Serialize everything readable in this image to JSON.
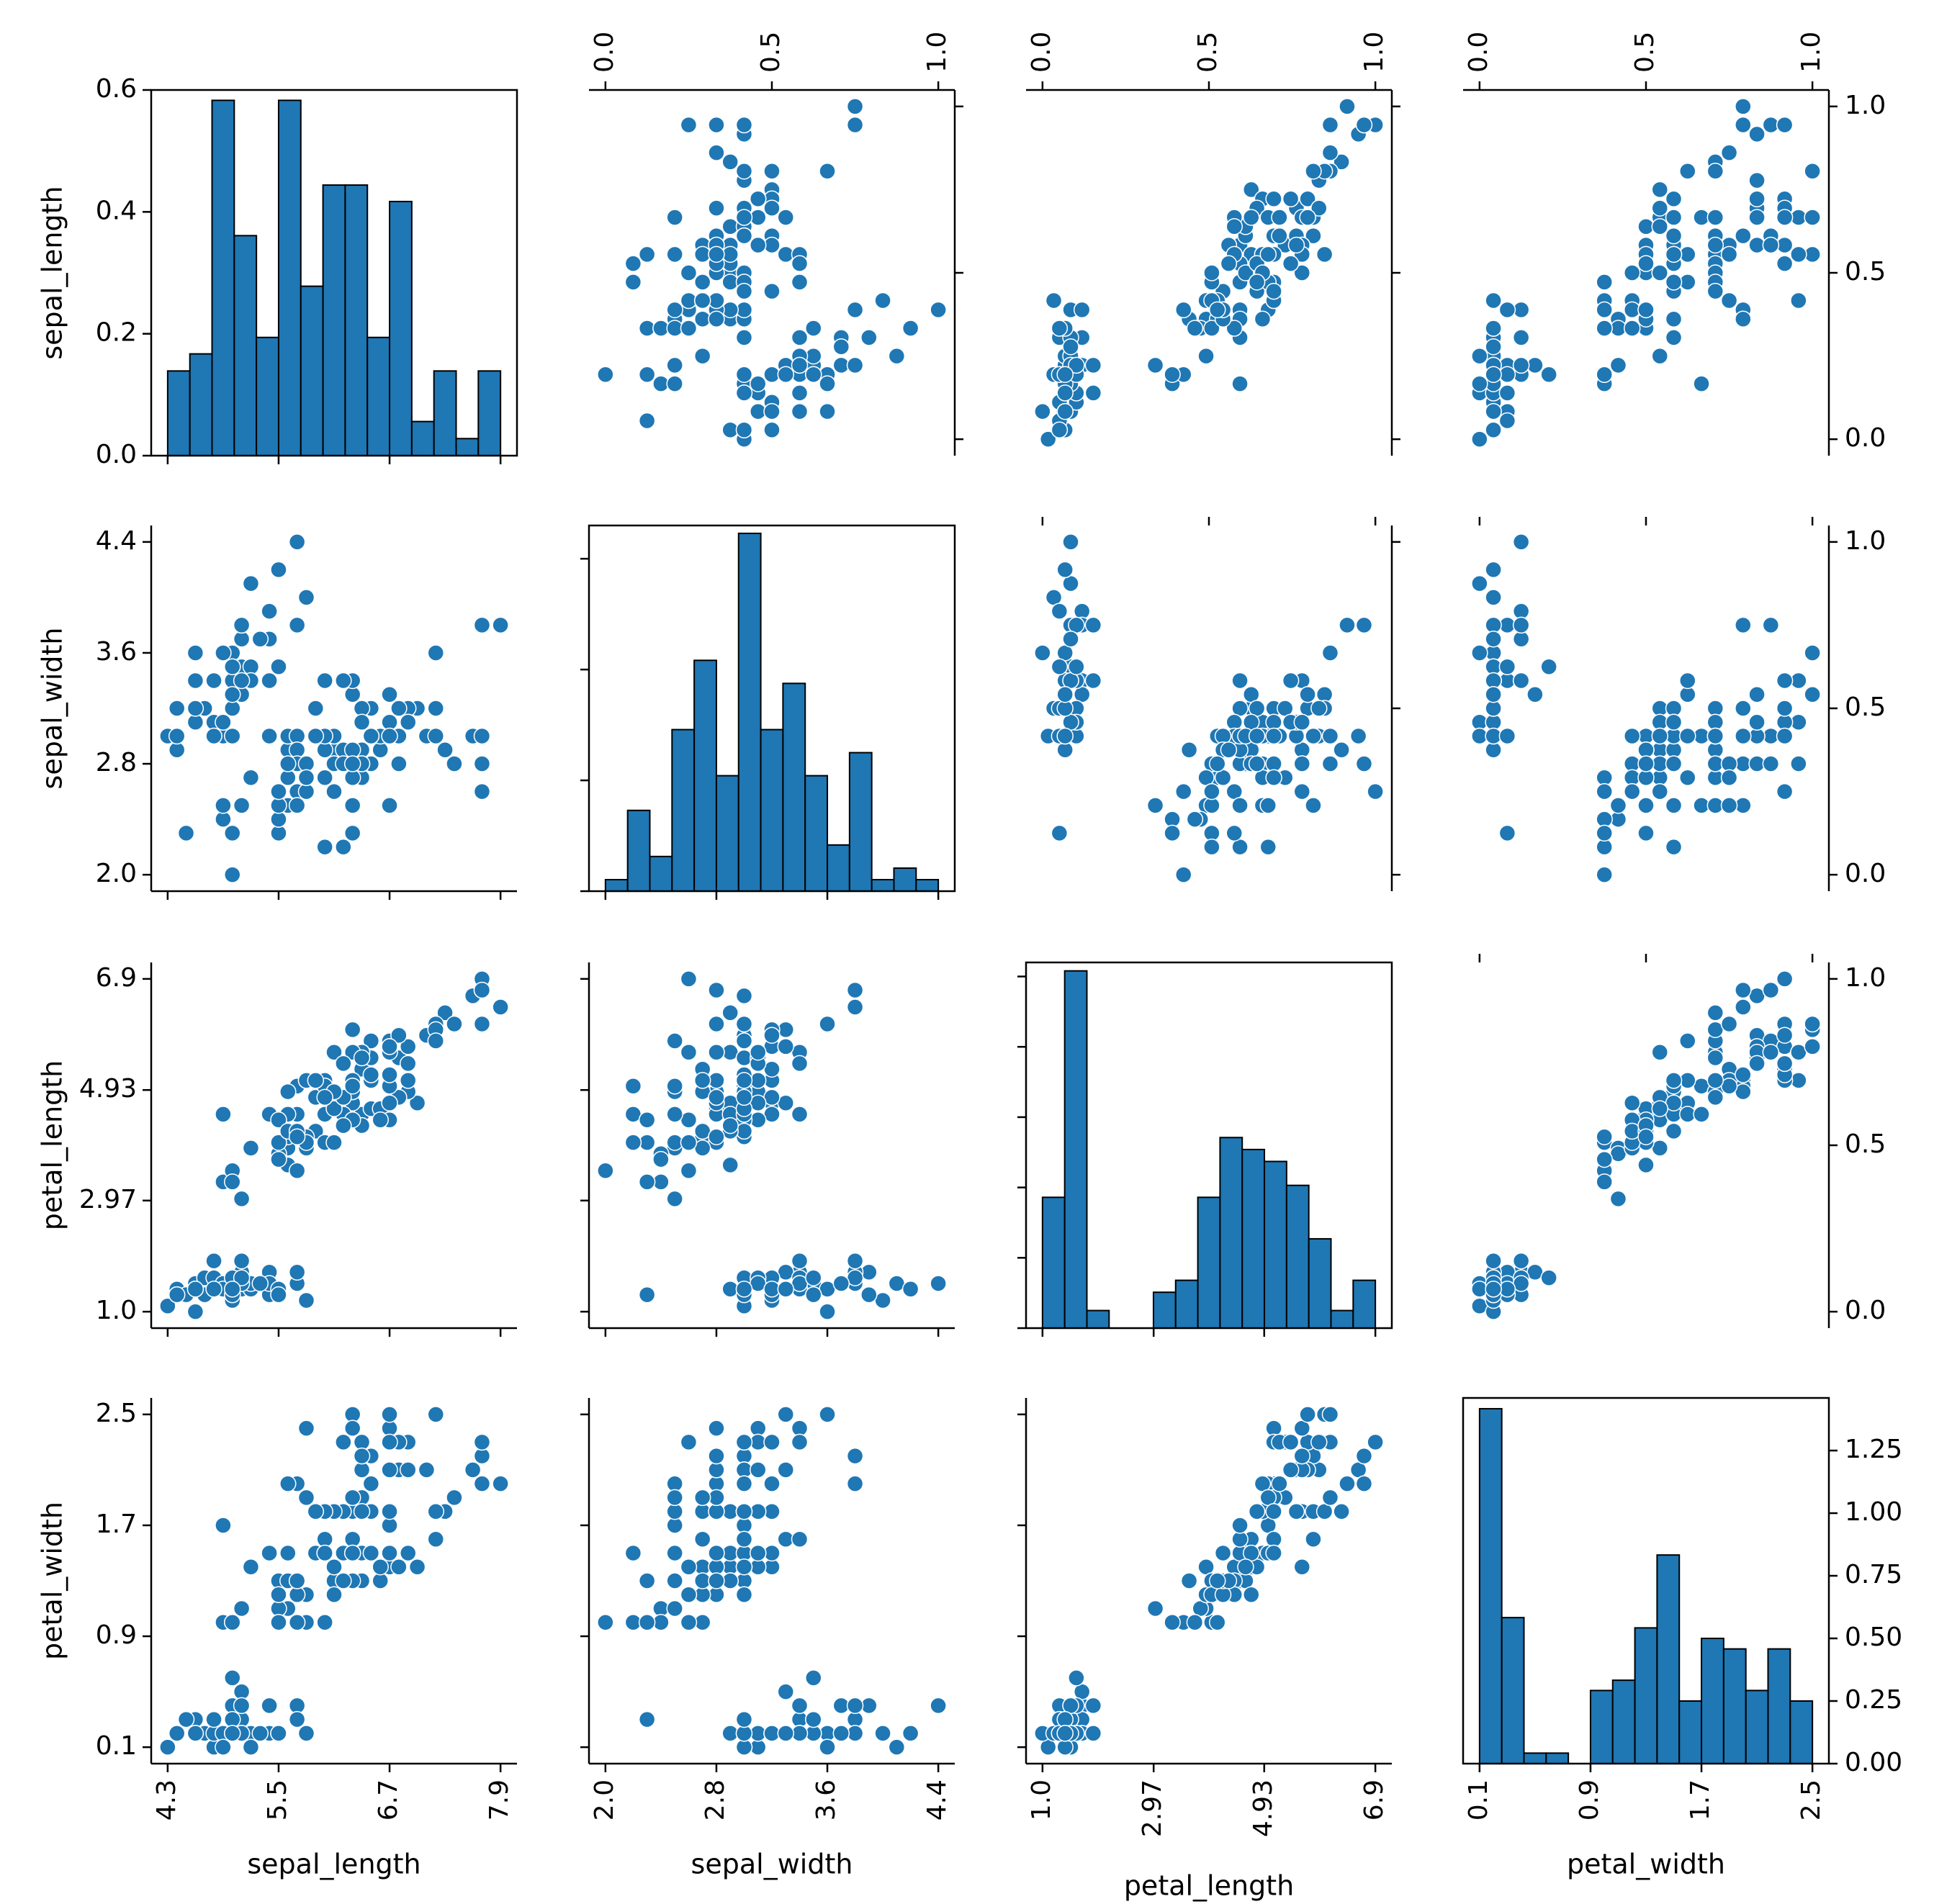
{
  "chart_data": {
    "type": "pairplot",
    "variables": [
      "sepal_length",
      "sepal_width",
      "petal_length",
      "petal_width"
    ],
    "colors": {
      "marker": "#1f77b4",
      "bar": "#1f77b4",
      "edge": "#000000"
    },
    "ticks": {
      "sepal_length": {
        "values": [
          4.3,
          5.5,
          6.7,
          7.9
        ],
        "labels": [
          "4.3",
          "5.5",
          "6.7",
          "7.9"
        ],
        "range": [
          4.3,
          7.9
        ]
      },
      "sepal_width": {
        "values": [
          2.0,
          2.8,
          3.6,
          4.4
        ],
        "labels": [
          "2.0",
          "2.8",
          "3.6",
          "4.4"
        ],
        "range": [
          2.0,
          4.4
        ]
      },
      "petal_length": {
        "values": [
          1.0,
          2.97,
          4.93,
          6.9
        ],
        "labels": [
          "1.0",
          "2.97",
          "4.93",
          "6.9"
        ],
        "range": [
          1.0,
          6.9
        ]
      },
      "petal_width": {
        "values": [
          0.1,
          0.9,
          1.7,
          2.5
        ],
        "labels": [
          "0.1",
          "0.9",
          "1.7",
          "2.5"
        ],
        "range": [
          0.1,
          2.5
        ]
      }
    },
    "normalized_ticks": {
      "values": [
        0.0,
        0.5,
        1.0
      ],
      "labels": [
        "0.0",
        "0.5",
        "1.0"
      ]
    },
    "histograms": {
      "sepal_length": {
        "bin_edges": [
          4.3,
          4.54,
          4.78,
          5.02,
          5.26,
          5.5,
          5.74,
          5.98,
          6.22,
          6.46,
          6.7,
          6.94,
          7.18,
          7.42,
          7.66,
          7.9
        ],
        "counts": [
          0.139,
          0.167,
          0.583,
          0.361,
          0.194,
          0.583,
          0.278,
          0.444,
          0.444,
          0.194,
          0.417,
          0.056,
          0.139,
          0.028,
          0.139
        ],
        "ylim": [
          0,
          0.6
        ],
        "yticks": [
          0.0,
          0.2,
          0.4,
          0.6
        ],
        "ytick_labels": [
          "0.0",
          "0.2",
          "0.4",
          "0.6"
        ]
      },
      "sepal_width": {
        "bin_edges": [
          2.0,
          2.16,
          2.32,
          2.48,
          2.64,
          2.8,
          2.96,
          3.12,
          3.28,
          3.44,
          3.6,
          3.76,
          3.92,
          4.08,
          4.24,
          4.4
        ],
        "counts": [
          0.104,
          0.729,
          0.313,
          1.458,
          2.083,
          1.042,
          3.229,
          1.458,
          1.875,
          1.042,
          0.417,
          1.25,
          0.104,
          0.208,
          0.104
        ],
        "ylim": [
          0,
          3.3
        ],
        "yticks": [
          0,
          1,
          2,
          3
        ],
        "ytick_labels": [
          "",
          "",
          "",
          ""
        ]
      },
      "petal_length": {
        "bin_edges": [
          1.0,
          1.3933,
          1.7867,
          2.18,
          2.5733,
          2.9667,
          3.36,
          3.7533,
          4.1467,
          4.54,
          4.9333,
          5.3267,
          5.72,
          6.1133,
          6.5067,
          6.9
        ],
        "counts": [
          0.186,
          0.508,
          0.025,
          0,
          0,
          0.051,
          0.068,
          0.186,
          0.271,
          0.254,
          0.237,
          0.203,
          0.127,
          0.025,
          0.068
        ],
        "ylim": [
          0,
          0.52
        ],
        "yticks": [
          0,
          0.1,
          0.2,
          0.3,
          0.4,
          0.5
        ],
        "ytick_labels": [
          "",
          "",
          "",
          "",
          "",
          ""
        ]
      },
      "petal_width": {
        "bin_edges": [
          0.1,
          0.26,
          0.42,
          0.58,
          0.74,
          0.9,
          1.06,
          1.22,
          1.38,
          1.54,
          1.7,
          1.86,
          2.02,
          2.18,
          2.34,
          2.5
        ],
        "counts": [
          1.417,
          0.583,
          0.042,
          0.042,
          0,
          0.292,
          0.333,
          0.542,
          0.833,
          0.25,
          0.5,
          0.458,
          0.292,
          0.458,
          0.25
        ],
        "ylim": [
          0,
          1.46
        ],
        "yticks": [
          0.0,
          0.25,
          0.5,
          0.75,
          1.0,
          1.25
        ],
        "ytick_labels": [
          "0.00",
          "0.25",
          "0.50",
          "0.75",
          "1.00",
          "1.25"
        ]
      }
    },
    "scatter_layout": {
      "lower_triangle": "raw values (x = column variable, y = row variable)",
      "upper_triangle": "min-max normalized values (0-1), y ticks shown on right of last column"
    },
    "points": [
      [
        5.1,
        3.5,
        1.4,
        0.2
      ],
      [
        4.9,
        3.0,
        1.4,
        0.2
      ],
      [
        4.7,
        3.2,
        1.3,
        0.2
      ],
      [
        4.6,
        3.1,
        1.5,
        0.2
      ],
      [
        5.0,
        3.6,
        1.4,
        0.2
      ],
      [
        5.4,
        3.9,
        1.7,
        0.4
      ],
      [
        4.6,
        3.4,
        1.4,
        0.3
      ],
      [
        5.0,
        3.4,
        1.5,
        0.2
      ],
      [
        4.4,
        2.9,
        1.4,
        0.2
      ],
      [
        4.9,
        3.1,
        1.5,
        0.1
      ],
      [
        5.4,
        3.7,
        1.5,
        0.2
      ],
      [
        4.8,
        3.4,
        1.6,
        0.2
      ],
      [
        4.8,
        3.0,
        1.4,
        0.1
      ],
      [
        4.3,
        3.0,
        1.1,
        0.1
      ],
      [
        5.8,
        4.0,
        1.2,
        0.2
      ],
      [
        5.7,
        4.4,
        1.5,
        0.4
      ],
      [
        5.4,
        3.9,
        1.3,
        0.4
      ],
      [
        5.1,
        3.5,
        1.4,
        0.3
      ],
      [
        5.7,
        3.8,
        1.7,
        0.3
      ],
      [
        5.1,
        3.8,
        1.5,
        0.3
      ],
      [
        5.4,
        3.4,
        1.7,
        0.2
      ],
      [
        5.1,
        3.7,
        1.5,
        0.4
      ],
      [
        4.6,
        3.6,
        1.0,
        0.2
      ],
      [
        5.1,
        3.3,
        1.7,
        0.5
      ],
      [
        4.8,
        3.4,
        1.9,
        0.2
      ],
      [
        5.0,
        3.0,
        1.6,
        0.2
      ],
      [
        5.0,
        3.4,
        1.6,
        0.4
      ],
      [
        5.2,
        3.5,
        1.5,
        0.2
      ],
      [
        5.2,
        3.4,
        1.4,
        0.2
      ],
      [
        4.7,
        3.2,
        1.6,
        0.2
      ],
      [
        4.8,
        3.1,
        1.6,
        0.2
      ],
      [
        5.4,
        3.4,
        1.5,
        0.4
      ],
      [
        5.2,
        4.1,
        1.5,
        0.1
      ],
      [
        5.5,
        4.2,
        1.4,
        0.2
      ],
      [
        4.9,
        3.1,
        1.5,
        0.2
      ],
      [
        5.0,
        3.2,
        1.2,
        0.2
      ],
      [
        5.5,
        3.5,
        1.3,
        0.2
      ],
      [
        4.9,
        3.6,
        1.4,
        0.1
      ],
      [
        4.4,
        3.0,
        1.3,
        0.2
      ],
      [
        5.1,
        3.4,
        1.5,
        0.2
      ],
      [
        5.0,
        3.5,
        1.3,
        0.3
      ],
      [
        4.5,
        2.3,
        1.3,
        0.3
      ],
      [
        4.4,
        3.2,
        1.3,
        0.2
      ],
      [
        5.0,
        3.5,
        1.6,
        0.6
      ],
      [
        5.1,
        3.8,
        1.9,
        0.4
      ],
      [
        4.8,
        3.0,
        1.4,
        0.3
      ],
      [
        5.1,
        3.8,
        1.6,
        0.2
      ],
      [
        4.6,
        3.2,
        1.4,
        0.2
      ],
      [
        5.3,
        3.7,
        1.5,
        0.2
      ],
      [
        5.0,
        3.3,
        1.4,
        0.2
      ],
      [
        7.0,
        3.2,
        4.7,
        1.4
      ],
      [
        6.4,
        3.2,
        4.5,
        1.5
      ],
      [
        6.9,
        3.1,
        4.9,
        1.5
      ],
      [
        5.5,
        2.3,
        4.0,
        1.3
      ],
      [
        6.5,
        2.8,
        4.6,
        1.5
      ],
      [
        5.7,
        2.8,
        4.5,
        1.3
      ],
      [
        6.3,
        3.3,
        4.7,
        1.6
      ],
      [
        4.9,
        2.4,
        3.3,
        1.0
      ],
      [
        6.6,
        2.9,
        4.6,
        1.3
      ],
      [
        5.2,
        2.7,
        3.9,
        1.4
      ],
      [
        5.0,
        2.0,
        3.5,
        1.0
      ],
      [
        5.9,
        3.0,
        4.2,
        1.5
      ],
      [
        6.0,
        2.2,
        4.0,
        1.0
      ],
      [
        6.1,
        2.9,
        4.7,
        1.4
      ],
      [
        5.6,
        2.9,
        3.6,
        1.3
      ],
      [
        6.7,
        3.1,
        4.4,
        1.4
      ],
      [
        5.6,
        3.0,
        4.5,
        1.5
      ],
      [
        5.8,
        2.7,
        4.1,
        1.0
      ],
      [
        6.2,
        2.2,
        4.5,
        1.5
      ],
      [
        5.6,
        2.5,
        3.9,
        1.1
      ],
      [
        5.9,
        3.2,
        4.8,
        1.8
      ],
      [
        6.1,
        2.8,
        4.0,
        1.3
      ],
      [
        6.3,
        2.5,
        4.9,
        1.5
      ],
      [
        6.1,
        2.8,
        4.7,
        1.2
      ],
      [
        6.4,
        2.9,
        4.3,
        1.3
      ],
      [
        6.6,
        3.0,
        4.4,
        1.4
      ],
      [
        6.8,
        2.8,
        4.8,
        1.4
      ],
      [
        6.7,
        3.0,
        5.0,
        1.7
      ],
      [
        6.0,
        2.9,
        4.5,
        1.5
      ],
      [
        5.7,
        2.6,
        3.5,
        1.0
      ],
      [
        5.5,
        2.4,
        3.8,
        1.1
      ],
      [
        5.5,
        2.4,
        3.7,
        1.0
      ],
      [
        5.8,
        2.7,
        3.9,
        1.2
      ],
      [
        6.0,
        2.7,
        5.1,
        1.6
      ],
      [
        5.4,
        3.0,
        4.5,
        1.5
      ],
      [
        6.0,
        3.4,
        4.5,
        1.6
      ],
      [
        6.7,
        3.1,
        4.7,
        1.5
      ],
      [
        6.3,
        2.3,
        4.4,
        1.3
      ],
      [
        5.6,
        3.0,
        4.1,
        1.3
      ],
      [
        5.5,
        2.5,
        4.0,
        1.3
      ],
      [
        5.5,
        2.6,
        4.4,
        1.2
      ],
      [
        6.1,
        3.0,
        4.6,
        1.4
      ],
      [
        5.8,
        2.6,
        4.0,
        1.2
      ],
      [
        5.0,
        2.3,
        3.3,
        1.0
      ],
      [
        5.6,
        2.7,
        4.2,
        1.3
      ],
      [
        5.7,
        3.0,
        4.2,
        1.2
      ],
      [
        5.7,
        2.9,
        4.2,
        1.3
      ],
      [
        6.2,
        2.9,
        4.3,
        1.3
      ],
      [
        5.1,
        2.5,
        3.0,
        1.1
      ],
      [
        5.7,
        2.8,
        4.1,
        1.3
      ],
      [
        6.3,
        3.3,
        6.0,
        2.5
      ],
      [
        5.8,
        2.7,
        5.1,
        1.9
      ],
      [
        7.1,
        3.0,
        5.9,
        2.1
      ],
      [
        6.3,
        2.9,
        5.6,
        1.8
      ],
      [
        6.5,
        3.0,
        5.8,
        2.2
      ],
      [
        7.6,
        3.0,
        6.6,
        2.1
      ],
      [
        4.9,
        2.5,
        4.5,
        1.7
      ],
      [
        7.3,
        2.9,
        6.3,
        1.8
      ],
      [
        6.7,
        2.5,
        5.8,
        1.8
      ],
      [
        7.2,
        3.6,
        6.1,
        2.5
      ],
      [
        6.5,
        3.2,
        5.1,
        2.0
      ],
      [
        6.4,
        2.7,
        5.3,
        1.9
      ],
      [
        6.8,
        3.0,
        5.5,
        2.1
      ],
      [
        5.7,
        2.5,
        5.0,
        2.0
      ],
      [
        5.8,
        2.8,
        5.1,
        2.4
      ],
      [
        6.4,
        3.2,
        5.3,
        2.3
      ],
      [
        6.5,
        3.0,
        5.5,
        1.8
      ],
      [
        7.7,
        3.8,
        6.7,
        2.2
      ],
      [
        7.7,
        2.6,
        6.9,
        2.3
      ],
      [
        6.0,
        2.2,
        5.0,
        1.5
      ],
      [
        6.9,
        3.2,
        5.7,
        2.3
      ],
      [
        5.6,
        2.8,
        4.9,
        2.0
      ],
      [
        7.7,
        2.8,
        6.7,
        2.0
      ],
      [
        6.3,
        2.7,
        4.9,
        1.8
      ],
      [
        6.7,
        3.3,
        5.7,
        2.1
      ],
      [
        7.2,
        3.2,
        6.0,
        1.8
      ],
      [
        6.2,
        2.8,
        4.8,
        1.8
      ],
      [
        6.1,
        3.0,
        4.9,
        1.8
      ],
      [
        6.4,
        2.8,
        5.6,
        2.1
      ],
      [
        7.2,
        3.0,
        5.8,
        1.6
      ],
      [
        7.4,
        2.8,
        6.1,
        1.9
      ],
      [
        7.9,
        3.8,
        6.4,
        2.0
      ],
      [
        6.4,
        2.8,
        5.6,
        2.2
      ],
      [
        6.3,
        2.8,
        5.1,
        1.5
      ],
      [
        6.1,
        2.6,
        5.6,
        1.4
      ],
      [
        7.7,
        3.0,
        6.1,
        2.3
      ],
      [
        6.3,
        3.4,
        5.6,
        2.4
      ],
      [
        6.4,
        3.1,
        5.5,
        1.8
      ],
      [
        6.0,
        3.0,
        4.8,
        1.8
      ],
      [
        6.9,
        3.1,
        5.4,
        2.1
      ],
      [
        6.7,
        3.1,
        5.6,
        2.4
      ],
      [
        6.9,
        3.1,
        5.1,
        2.3
      ],
      [
        5.8,
        2.7,
        5.1,
        1.9
      ],
      [
        6.8,
        3.2,
        5.9,
        2.3
      ],
      [
        6.7,
        3.3,
        5.7,
        2.5
      ],
      [
        6.7,
        3.0,
        5.2,
        2.3
      ],
      [
        6.3,
        2.5,
        5.0,
        1.9
      ],
      [
        6.5,
        3.0,
        5.2,
        2.0
      ],
      [
        6.2,
        3.4,
        5.4,
        2.3
      ],
      [
        5.9,
        3.0,
        5.1,
        1.8
      ]
    ]
  }
}
